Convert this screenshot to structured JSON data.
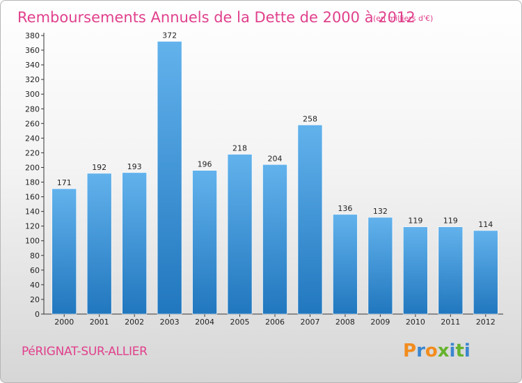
{
  "title": "Remboursements Annuels de la Dette de 2000 à 2012",
  "subtitle": "(en milliers d'€)",
  "commune": "PéRIGNAT-SUR-ALLIER",
  "brand": "Proxiti",
  "colors": {
    "accent": "#e0408c",
    "bar_light": "#62b2ec",
    "bar_dark": "#2177be",
    "brand_letters": [
      "#f28c1e",
      "#3a86d0",
      "#f28c1e",
      "#66b32e",
      "#3a86d0",
      "#66b32e",
      "#3a86d0"
    ]
  },
  "chart_data": {
    "type": "bar",
    "title": "Remboursements Annuels de la Dette de 2000 à 2012",
    "subtitle": "(en milliers d'€)",
    "categories": [
      "2000",
      "2001",
      "2002",
      "2003",
      "2004",
      "2005",
      "2006",
      "2007",
      "2008",
      "2009",
      "2010",
      "2011",
      "2012"
    ],
    "values": [
      171,
      192,
      193,
      372,
      196,
      218,
      204,
      258,
      136,
      132,
      119,
      119,
      114
    ],
    "ylim": [
      0,
      380
    ],
    "yticks": [
      0,
      20,
      40,
      60,
      80,
      100,
      120,
      140,
      160,
      180,
      200,
      220,
      240,
      260,
      280,
      300,
      320,
      340,
      360,
      380
    ],
    "grid": false,
    "legend": "none"
  }
}
